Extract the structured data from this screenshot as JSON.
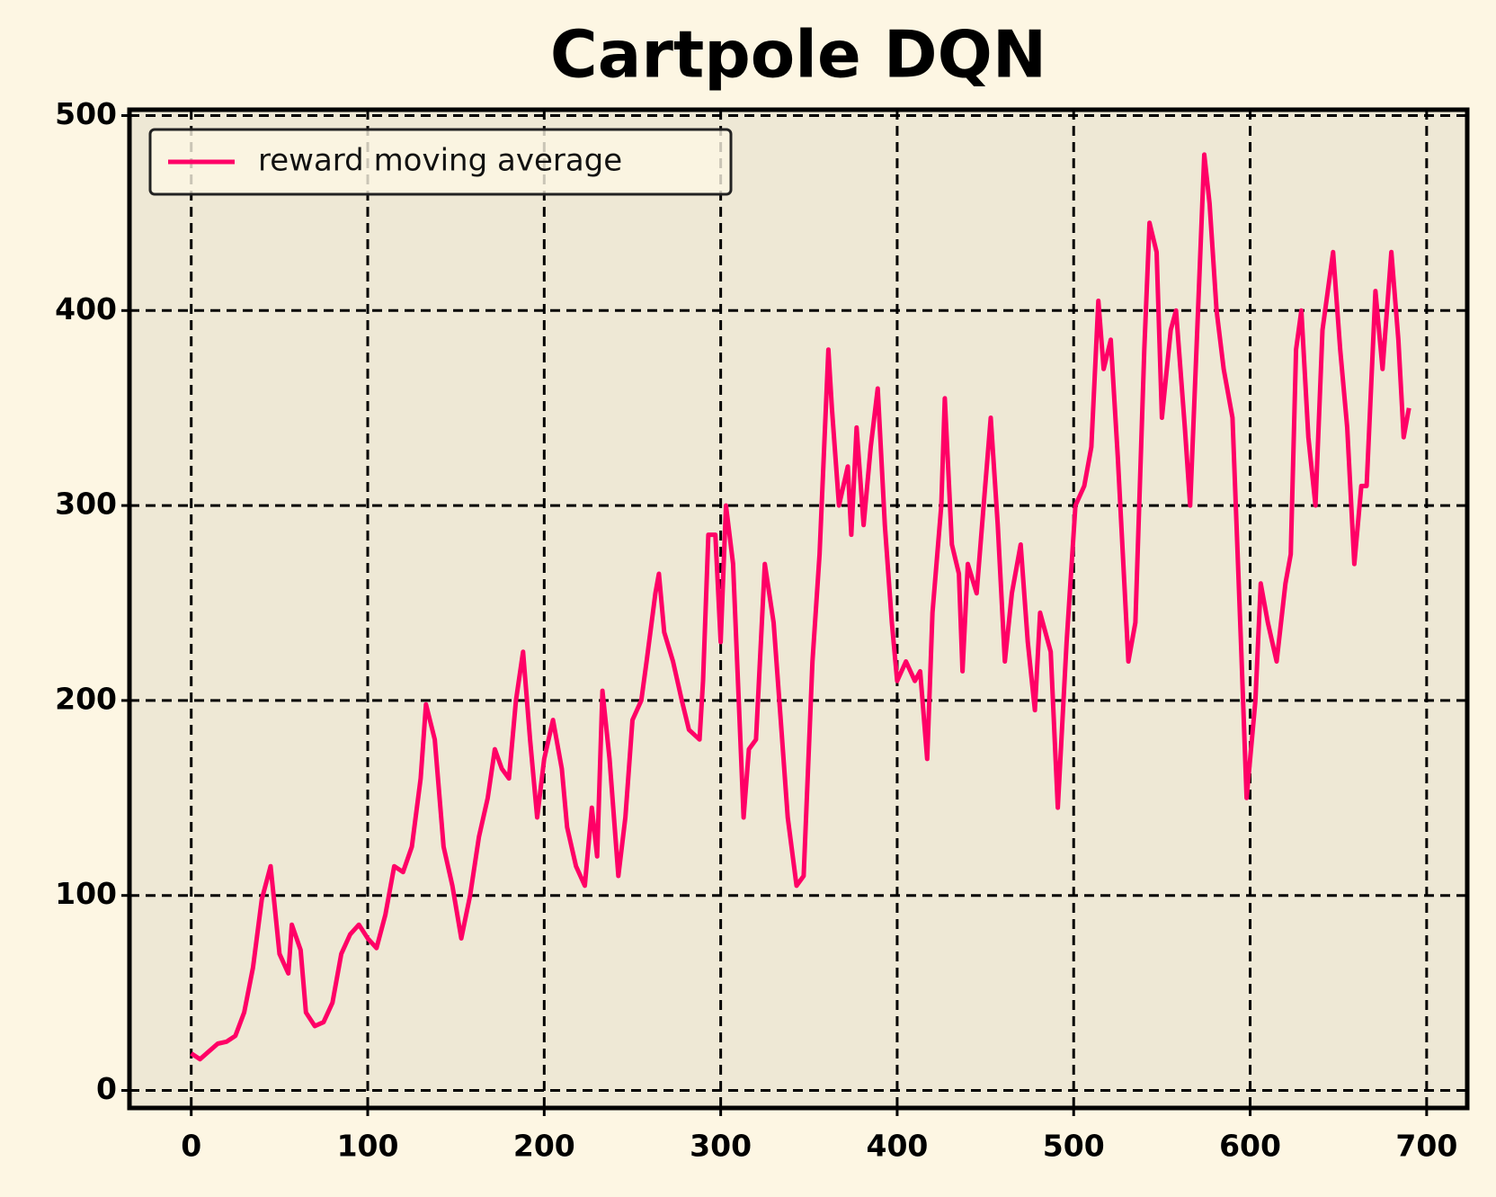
{
  "chart_data": {
    "type": "line",
    "title": "Cartpole DQN",
    "x": [
      0,
      5,
      10,
      15,
      20,
      25,
      30,
      35,
      40,
      45,
      50,
      55,
      57,
      62,
      65,
      70,
      75,
      80,
      85,
      90,
      95,
      100,
      105,
      110,
      115,
      120,
      125,
      130,
      133,
      138,
      143,
      148,
      153,
      158,
      163,
      168,
      172,
      176,
      180,
      184,
      188,
      192,
      196,
      200,
      205,
      210,
      213,
      218,
      223,
      227,
      230,
      233,
      237,
      242,
      246,
      250,
      255,
      258,
      263,
      265,
      268,
      273,
      278,
      282,
      288,
      290,
      293,
      297,
      300,
      303,
      307,
      313,
      316,
      320,
      325,
      330,
      334,
      338,
      343,
      347,
      352,
      356,
      361,
      363,
      367,
      372,
      374,
      377,
      381,
      385,
      389,
      393,
      397,
      400,
      405,
      410,
      413,
      417,
      420,
      425,
      427,
      431,
      435,
      437,
      440,
      445,
      449,
      453,
      457,
      461,
      465,
      470,
      474,
      478,
      481,
      487,
      491,
      496,
      501,
      506,
      510,
      514,
      517,
      521,
      525,
      531,
      535,
      540,
      543,
      547,
      550,
      555,
      558,
      563,
      566,
      570,
      574,
      577,
      581,
      585,
      590,
      595,
      598,
      603,
      606,
      610,
      615,
      620,
      623,
      626,
      629,
      633,
      637,
      641,
      644,
      647,
      651,
      655,
      659,
      663,
      666,
      671,
      675,
      680,
      684,
      687,
      690
    ],
    "series": [
      {
        "name": "reward moving average",
        "color": "#ff0066",
        "values": [
          19,
          16,
          20,
          24,
          25,
          28,
          40,
          63,
          98,
          115,
          70,
          60,
          85,
          72,
          40,
          33,
          35,
          45,
          70,
          80,
          85,
          78,
          73,
          90,
          115,
          112,
          125,
          160,
          198,
          180,
          125,
          105,
          78,
          100,
          130,
          150,
          175,
          165,
          160,
          200,
          225,
          180,
          140,
          170,
          190,
          165,
          135,
          115,
          105,
          145,
          120,
          205,
          170,
          110,
          140,
          190,
          200,
          220,
          255,
          265,
          235,
          220,
          200,
          185,
          180,
          210,
          285,
          285,
          230,
          300,
          270,
          140,
          175,
          180,
          270,
          240,
          190,
          140,
          105,
          110,
          220,
          275,
          380,
          350,
          300,
          320,
          285,
          340,
          290,
          330,
          360,
          290,
          240,
          210,
          220,
          210,
          215,
          170,
          245,
          300,
          355,
          280,
          265,
          215,
          270,
          255,
          300,
          345,
          290,
          220,
          255,
          280,
          230,
          195,
          245,
          225,
          145,
          230,
          300,
          310,
          330,
          405,
          370,
          385,
          325,
          220,
          240,
          380,
          445,
          430,
          345,
          390,
          400,
          340,
          300,
          390,
          480,
          455,
          400,
          370,
          345,
          225,
          150,
          200,
          260,
          240,
          220,
          260,
          275,
          380,
          400,
          335,
          300,
          390,
          410,
          430,
          380,
          340,
          270,
          310,
          310,
          410,
          370,
          430,
          385,
          335,
          350
        ]
      }
    ],
    "xlim": [
      -35,
      723
    ],
    "ylim": [
      -9,
      503
    ],
    "xticks": [
      0,
      100,
      200,
      300,
      400,
      500,
      600,
      700
    ],
    "yticks": [
      0,
      100,
      200,
      300,
      400,
      500
    ],
    "grid": true,
    "legend": "upper left"
  }
}
